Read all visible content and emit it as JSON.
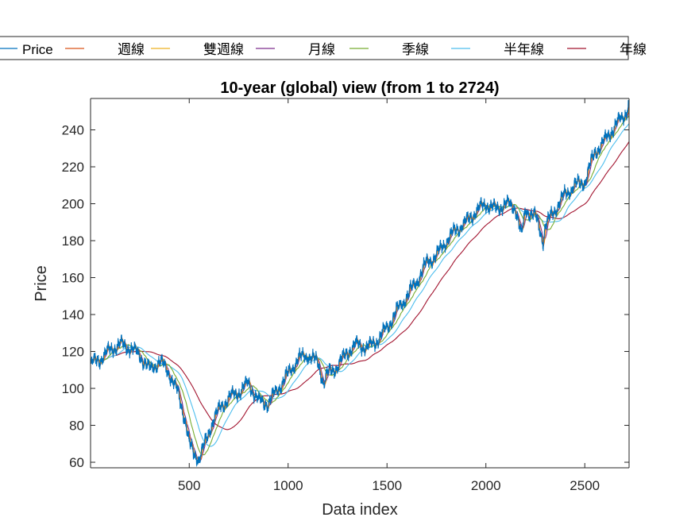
{
  "chart_data": {
    "type": "line",
    "title": "10-year (global) view (from 1 to 2724)",
    "xlabel": "Data index",
    "ylabel": "Price",
    "xlim": [
      1,
      2724
    ],
    "ylim": [
      57,
      257
    ],
    "xticks": [
      500,
      1000,
      1500,
      2000,
      2500
    ],
    "yticks": [
      60,
      80,
      100,
      120,
      140,
      160,
      180,
      200,
      220,
      240
    ],
    "grid": false,
    "legend_position": "top",
    "legend_orientation": "horizontal",
    "price_anchors": {
      "x": [
        1,
        50,
        100,
        150,
        200,
        250,
        300,
        350,
        400,
        440,
        480,
        500,
        520,
        550,
        580,
        620,
        660,
        700,
        750,
        800,
        850,
        900,
        950,
        1000,
        1050,
        1100,
        1150,
        1180,
        1200,
        1250,
        1300,
        1350,
        1400,
        1450,
        1500,
        1550,
        1600,
        1650,
        1700,
        1750,
        1800,
        1850,
        1900,
        1950,
        2000,
        2050,
        2100,
        2150,
        2180,
        2200,
        2250,
        2290,
        2300,
        2350,
        2400,
        2450,
        2500,
        2550,
        2600,
        2650,
        2700,
        2724
      ],
      "y": [
        113,
        116,
        121,
        124,
        122,
        118,
        110,
        115,
        108,
        98,
        83,
        70,
        65,
        62,
        70,
        83,
        90,
        95,
        98,
        103,
        93,
        92,
        100,
        108,
        116,
        118,
        114,
        103,
        108,
        112,
        120,
        124,
        122,
        126,
        133,
        142,
        150,
        158,
        168,
        172,
        180,
        186,
        190,
        196,
        200,
        197,
        200,
        198,
        182,
        197,
        193,
        180,
        188,
        197,
        205,
        210,
        212,
        228,
        234,
        242,
        248,
        254
      ]
    },
    "series": [
      {
        "name": "Price",
        "color": "#0072BD",
        "window": 1,
        "noise": 1.6
      },
      {
        "name": "週線",
        "color": "#D95319",
        "window": 5,
        "noise": 0.9
      },
      {
        "name": "雙週線",
        "color": "#EDB120",
        "window": 10,
        "noise": 0.5
      },
      {
        "name": "月線",
        "color": "#7E2F8E",
        "window": 20,
        "noise": 0.2
      },
      {
        "name": "季線",
        "color": "#77AC30",
        "window": 60,
        "noise": 0
      },
      {
        "name": "半年線",
        "color": "#4DBEEE",
        "window": 120,
        "noise": 0
      },
      {
        "name": "年線",
        "color": "#A2142F",
        "window": 240,
        "noise": 0
      }
    ]
  }
}
